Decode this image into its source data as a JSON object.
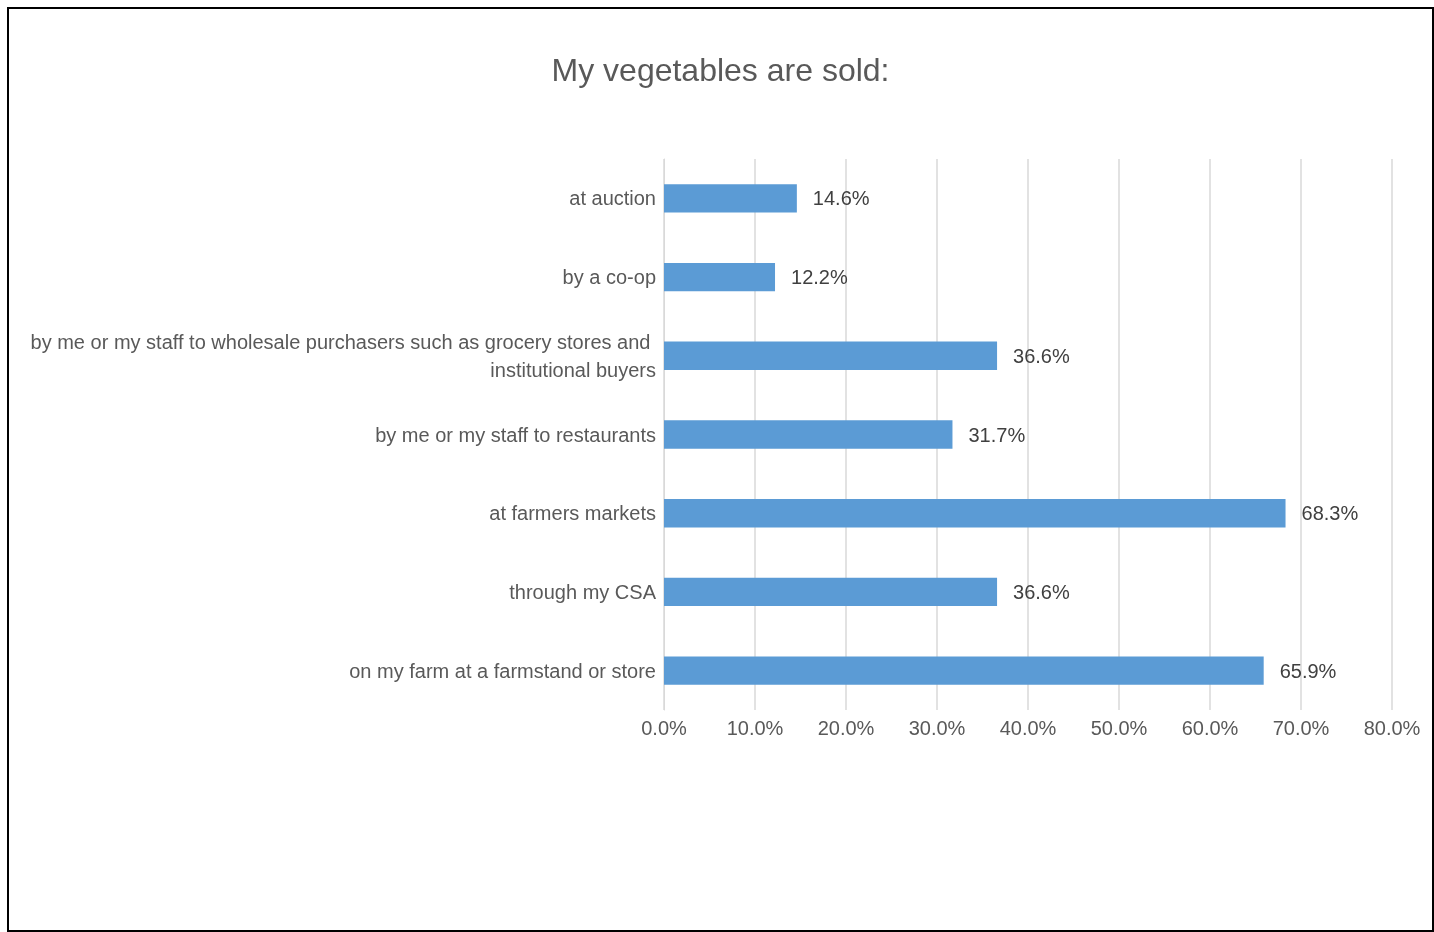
{
  "chart_data": {
    "type": "bar",
    "orientation": "horizontal",
    "title": "My vegetables are sold:",
    "categories": [
      "at auction",
      "by a co-op",
      "by me or my staff to wholesale purchasers such as grocery stores and institutional buyers",
      "by me or my staff to restaurants",
      "at farmers markets",
      "through my CSA",
      "on my farm at a farmstand or store"
    ],
    "values": [
      14.6,
      12.2,
      36.6,
      31.7,
      68.3,
      36.6,
      65.9
    ],
    "value_labels": [
      "14.6%",
      "12.2%",
      "36.6%",
      "31.7%",
      "68.3%",
      "36.6%",
      "65.9%"
    ],
    "color": "#5b9bd5",
    "xlim": [
      0,
      80
    ],
    "xticks": [
      {
        "value": 0,
        "label": "0.0%"
      },
      {
        "value": 10,
        "label": "10.0%"
      },
      {
        "value": 20,
        "label": "20.0%"
      },
      {
        "value": 30,
        "label": "30.0%"
      },
      {
        "value": 40,
        "label": "40.0%"
      },
      {
        "value": 50,
        "label": "50.0%"
      },
      {
        "value": 60,
        "label": "60.0%"
      },
      {
        "value": 70,
        "label": "70.0%"
      },
      {
        "value": 80,
        "label": "80.0%"
      }
    ],
    "grid": "x"
  }
}
